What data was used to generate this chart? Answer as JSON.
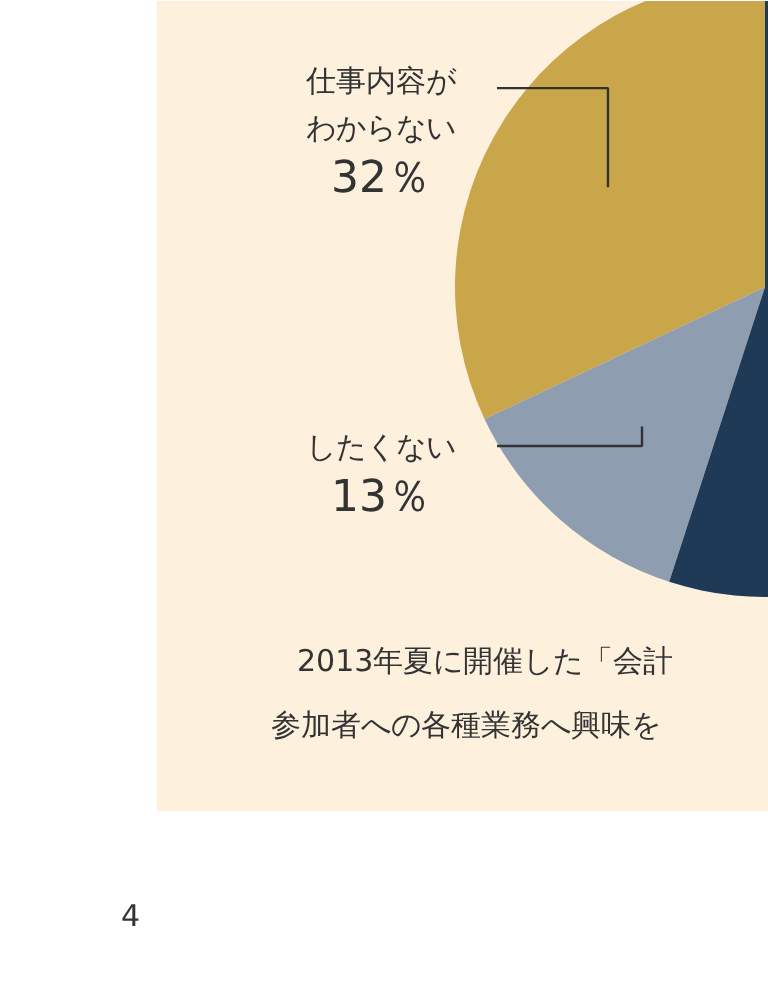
{
  "chart_data": {
    "type": "pie",
    "categories": [
      "仕事内容がわからない",
      "したくない",
      null
    ],
    "values": [
      32,
      13,
      55
    ],
    "colors": [
      "#c9a64a",
      "#8e9db0",
      "#1f3a57"
    ],
    "value_labels": [
      "32％",
      "13％",
      null
    ],
    "annotations": [
      "2013年夏に開催した「会計",
      "参加者への各種業務へ興味を",
      "4"
    ]
  }
}
